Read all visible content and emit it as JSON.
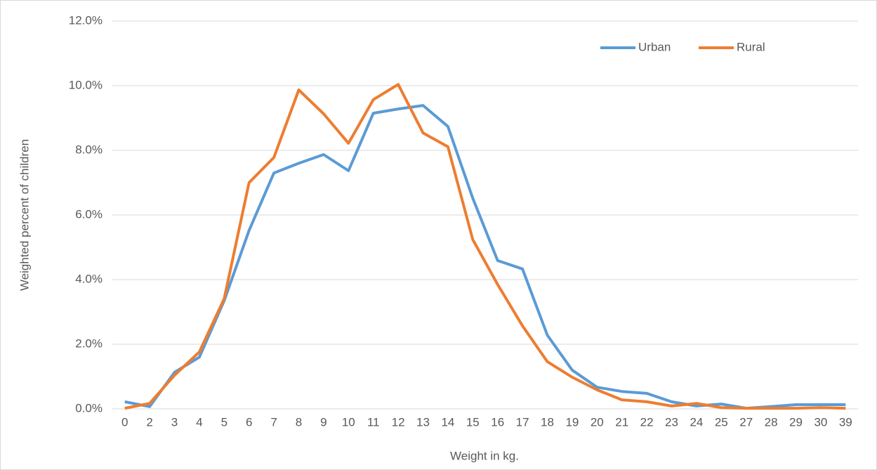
{
  "chart_data": {
    "type": "line",
    "x_label": "Weight in kg.",
    "y_label": "Weighted percent of children",
    "categories": [
      "0",
      "2",
      "3",
      "4",
      "5",
      "6",
      "7",
      "8",
      "9",
      "10",
      "11",
      "12",
      "13",
      "14",
      "15",
      "16",
      "17",
      "18",
      "19",
      "20",
      "21",
      "22",
      "23",
      "24",
      "25",
      "27",
      "28",
      "29",
      "30",
      "39"
    ],
    "series": [
      {
        "name": "Urban",
        "color": "#5b9bd5",
        "values": [
          0.22,
          0.07,
          1.13,
          1.6,
          3.35,
          5.52,
          7.3,
          7.6,
          7.87,
          7.37,
          9.15,
          9.28,
          9.39,
          8.74,
          6.52,
          4.59,
          4.33,
          2.28,
          1.2,
          0.67,
          0.54,
          0.48,
          0.22,
          0.09,
          0.15,
          0.02,
          0.07,
          0.13,
          0.13,
          0.13
        ]
      },
      {
        "name": "Rural",
        "color": "#ed7d31",
        "values": [
          0.02,
          0.17,
          1.04,
          1.76,
          3.41,
          7.0,
          7.78,
          9.87,
          9.13,
          8.22,
          9.57,
          10.04,
          8.54,
          8.11,
          5.24,
          3.85,
          2.57,
          1.46,
          0.98,
          0.59,
          0.28,
          0.22,
          0.09,
          0.17,
          0.04,
          0.02,
          0.02,
          0.02,
          0.04,
          0.02
        ]
      }
    ],
    "ylim": [
      0,
      12
    ],
    "yticks": [
      {
        "value": 0,
        "label": "0.0%"
      },
      {
        "value": 2,
        "label": "2.0%"
      },
      {
        "value": 4,
        "label": "4.0%"
      },
      {
        "value": 6,
        "label": "6.0%"
      },
      {
        "value": 8,
        "label": "8.0%"
      },
      {
        "value": 10,
        "label": "10.0%"
      },
      {
        "value": 12,
        "label": "12.0%"
      }
    ],
    "grid": true,
    "legend": "top-right"
  }
}
